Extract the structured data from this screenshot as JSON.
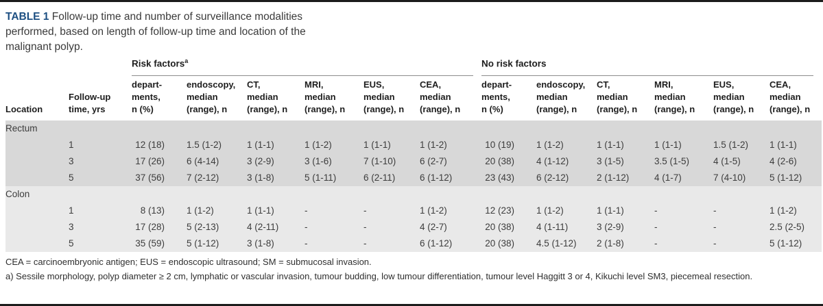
{
  "table": {
    "label": "TABLE 1",
    "title": "Follow-up time and number of surveillance modalities performed, based on length of follow-up time and location of the malignant polyp.",
    "groups": [
      {
        "label": "Risk factors",
        "superscript": "a"
      },
      {
        "label": "No risk factors",
        "superscript": ""
      }
    ],
    "columns": {
      "location": "Location",
      "followup": [
        "Follow-up",
        "time, yrs"
      ],
      "sub": [
        [
          "depart-",
          "ments,",
          "n (%)"
        ],
        [
          "endoscopy,",
          "median",
          "(range), n"
        ],
        [
          "CT,",
          "median",
          "(range), n"
        ],
        [
          "MRI,",
          "median",
          "(range), n"
        ],
        [
          "EUS,",
          "median",
          "(range), n"
        ],
        [
          "CEA,",
          "median",
          "(range), n"
        ]
      ]
    },
    "sections": [
      {
        "location": "Rectum",
        "rows": [
          {
            "followup": "1",
            "cells": [
              "12 (18)",
              "1.5 (1-2)",
              "1 (1-1)",
              "1 (1-2)",
              "1 (1-1)",
              "1 (1-2)",
              "10 (19)",
              "1 (1-2)",
              "1 (1-1)",
              "1 (1-1)",
              "1.5 (1-2)",
              "1 (1-1)"
            ]
          },
          {
            "followup": "3",
            "cells": [
              "17 (26)",
              "6 (4-14)",
              "3 (2-9)",
              "3 (1-6)",
              "7 (1-10)",
              "6 (2-7)",
              "20 (38)",
              "4 (1-12)",
              "3 (1-5)",
              "3.5 (1-5)",
              "4 (1-5)",
              "4 (2-6)"
            ]
          },
          {
            "followup": "5",
            "cells": [
              "37 (56)",
              "7 (2-12)",
              "3 (1-8)",
              "5 (1-11)",
              "6 (2-11)",
              "6 (1-12)",
              "23 (43)",
              "6 (2-12)",
              "2 (1-12)",
              "4 (1-7)",
              "7 (4-10)",
              "5 (1-12)"
            ]
          }
        ]
      },
      {
        "location": "Colon",
        "rows": [
          {
            "followup": "1",
            "cells": [
              "8 (13)",
              "1 (1-2)",
              "1 (1-1)",
              "-",
              "-",
              "1 (1-2)",
              "12 (23)",
              "1 (1-2)",
              "1 (1-1)",
              "-",
              "-",
              "1 (1-2)"
            ]
          },
          {
            "followup": "3",
            "cells": [
              "17 (28)",
              "5 (2-13)",
              "4 (2-11)",
              "-",
              "-",
              "4 (2-7)",
              "20 (38)",
              "4 (1-11)",
              "3 (2-9)",
              "-",
              "-",
              "2.5 (2-5)"
            ]
          },
          {
            "followup": "5",
            "cells": [
              "35 (59)",
              "5 (1-12)",
              "3 (1-8)",
              "-",
              "-",
              "6 (1-12)",
              "20 (38)",
              "4.5 (1-12)",
              "2 (1-8)",
              "-",
              "-",
              "5 (1-12)"
            ]
          }
        ]
      }
    ],
    "footnotes": [
      "CEA = carcinoembryonic antigen; EUS = endoscopic ultrasound; SM = submucosal invasion.",
      "a) Sessile morphology, polyp diameter ≥ 2 cm, lymphatic or vascular invasion, tumour budding, low tumour differentiation, tumour level Haggitt 3 or 4, Kikuchi level SM3, piecemeal resection."
    ],
    "colors": {
      "accent_blue": "#1d4f82",
      "section_rectum_bg": "#d8d8d8",
      "section_colon_bg": "#e9e9e9",
      "border_dark": "#1c1c1c",
      "rule_gray": "#8c8c8c"
    }
  }
}
